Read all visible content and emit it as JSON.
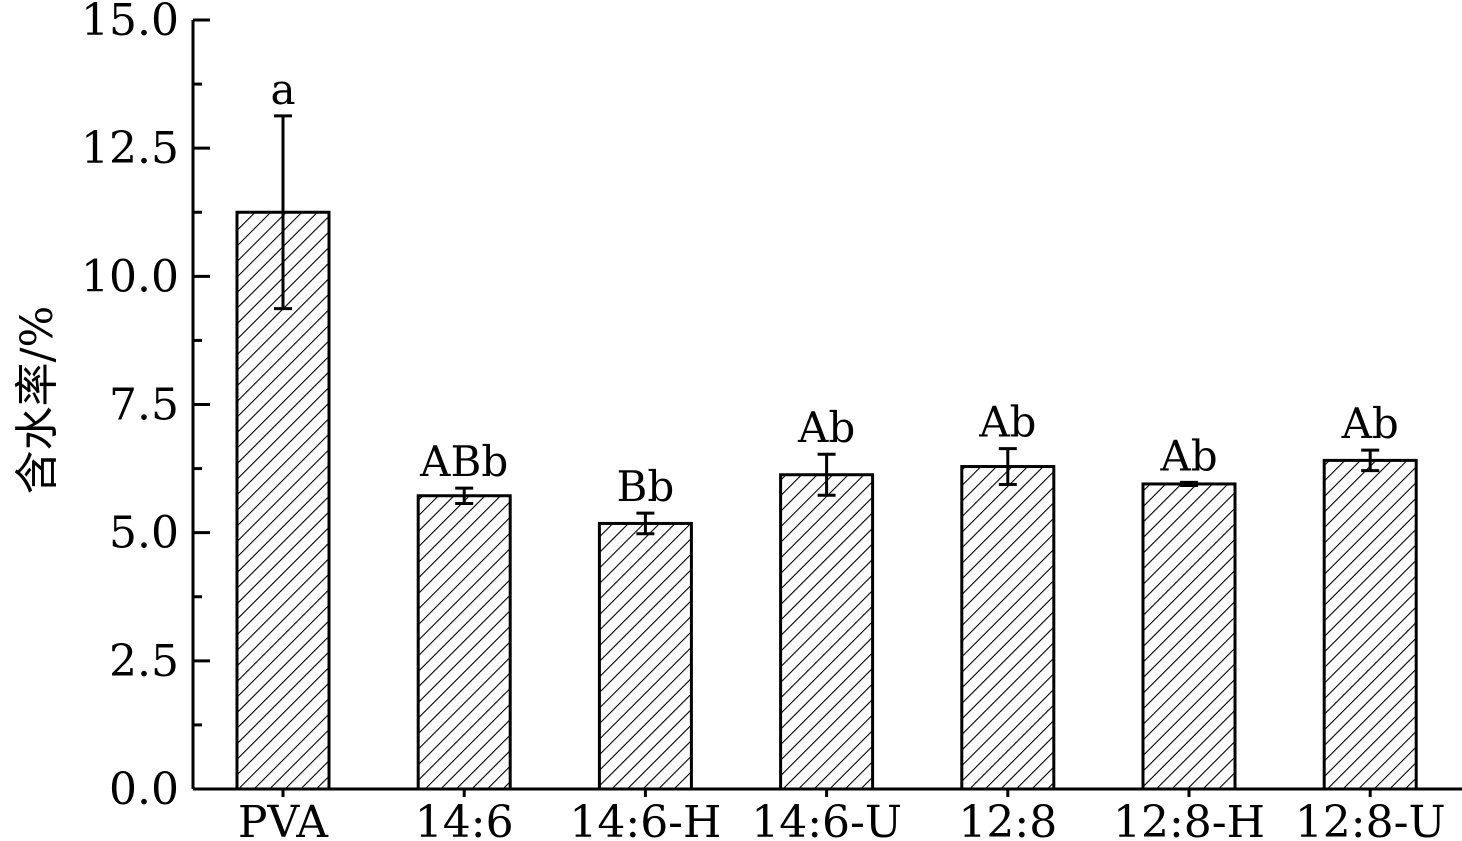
{
  "chart_data": {
    "type": "bar",
    "title": "",
    "xlabel": "",
    "ylabel": "含水率/%",
    "ylim": [
      0,
      15
    ],
    "yticks": [
      "0.0",
      "2.5",
      "5.0",
      "7.5",
      "10.0",
      "12.5",
      "15.0"
    ],
    "grid": false,
    "legend": "none",
    "bar_fill": "diagonal-hatch",
    "colors": {
      "stroke": "#000000",
      "fill": "#ffffff"
    },
    "categories": [
      "PVA",
      "14:6",
      "14:6-H",
      "14:6-U",
      "12:8",
      "12:8-H",
      "12:8-U"
    ],
    "values": [
      11.25,
      5.72,
      5.18,
      6.13,
      6.29,
      5.95,
      6.41
    ],
    "errors": [
      1.88,
      0.15,
      0.2,
      0.4,
      0.35,
      0.03,
      0.2
    ],
    "annotations": [
      "a",
      "ABb",
      "Bb",
      "Ab",
      "Ab",
      "Ab",
      "Ab"
    ]
  }
}
